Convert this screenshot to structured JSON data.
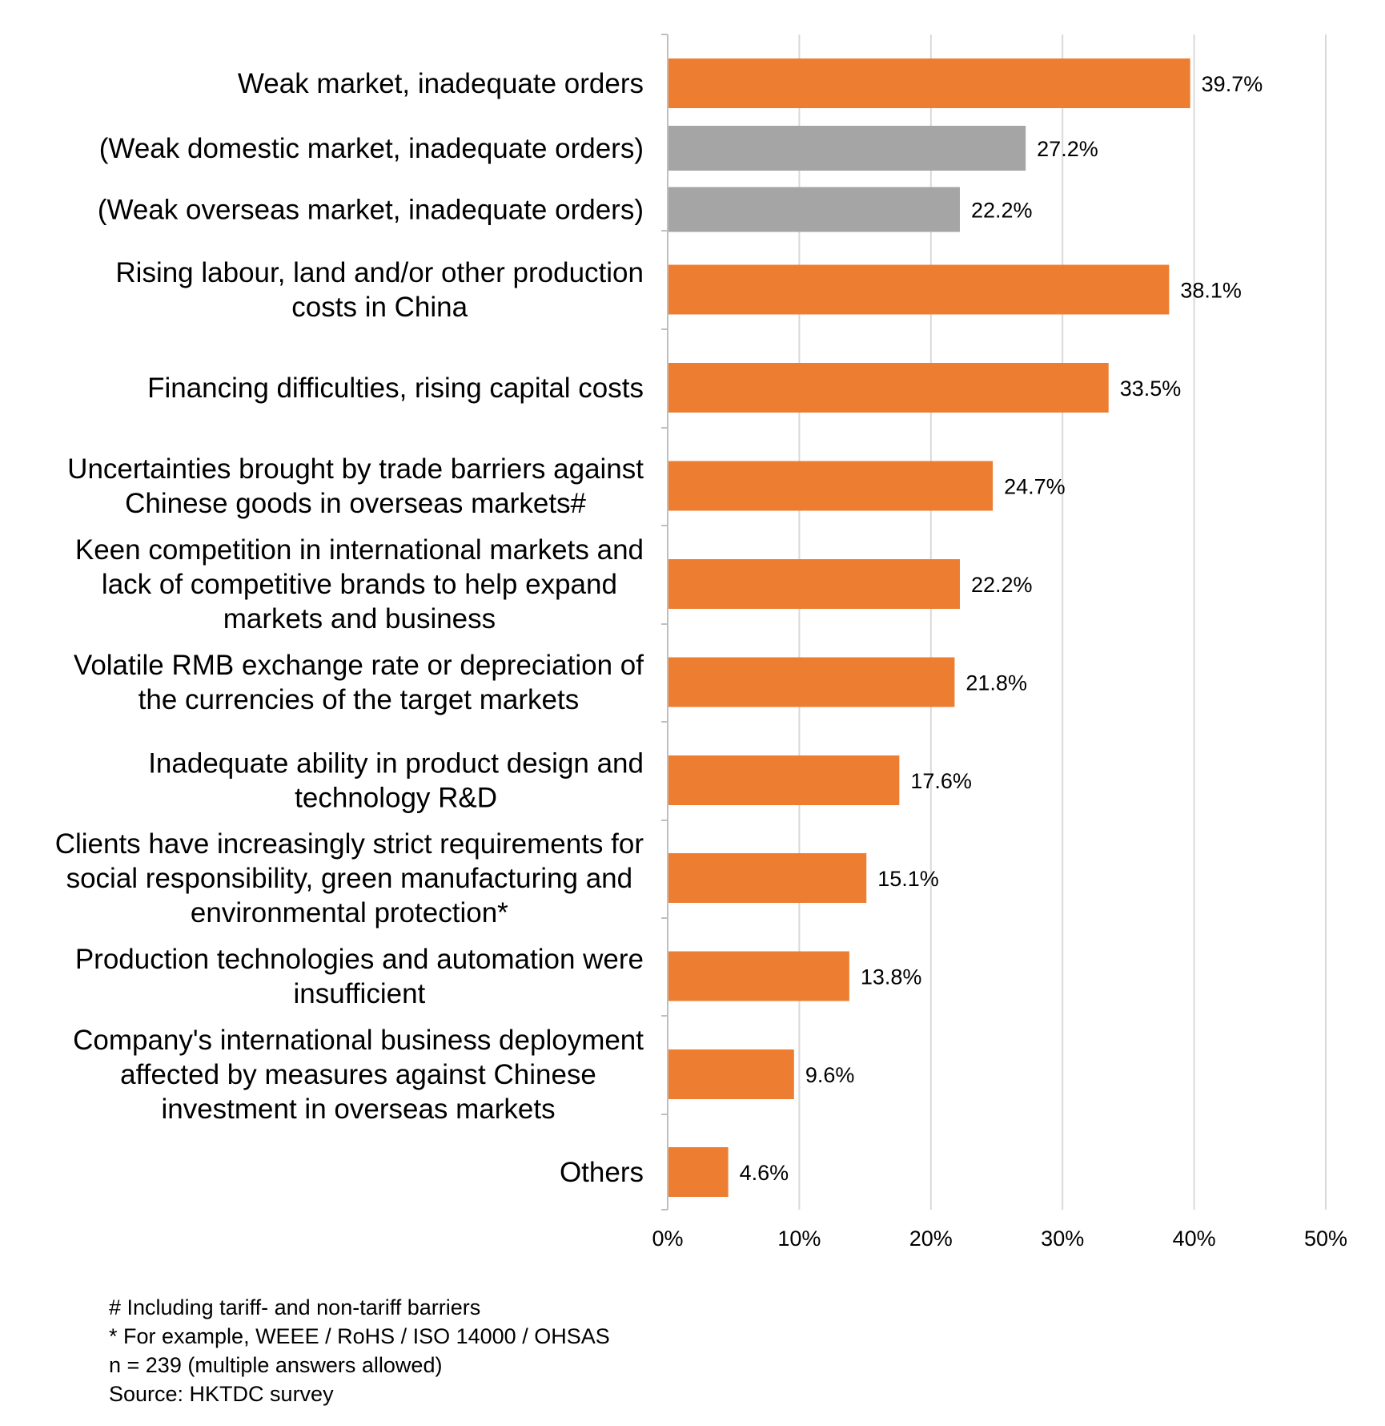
{
  "chart_data": {
    "type": "bar",
    "orientation": "horizontal",
    "title": "",
    "xlabel": "",
    "ylabel": "",
    "xlim": [
      0,
      50
    ],
    "grid": true,
    "value_suffix": "%",
    "ticks": [
      "0%",
      "10%",
      "20%",
      "30%",
      "40%",
      "50%"
    ],
    "tick_values": [
      0,
      10,
      20,
      30,
      40,
      50
    ],
    "colors": {
      "primary": "#ED7D31",
      "secondary": "#A5A5A5",
      "grid": "#D9D9D9",
      "axis": "#BFBFBF"
    },
    "categories": [
      {
        "label": [
          "Weak market, inadequate orders"
        ],
        "value": 39.7,
        "display": "39.7%",
        "kind": "primary"
      },
      {
        "label": [
          "(Weak domestic market, inadequate orders)"
        ],
        "value": 27.2,
        "display": "27.2%",
        "kind": "secondary"
      },
      {
        "label": [
          "(Weak overseas market, inadequate orders)"
        ],
        "value": 22.2,
        "display": "22.2%",
        "kind": "secondary"
      },
      {
        "label": [
          "Rising labour, land and/or other production",
          "costs in China"
        ],
        "value": 38.1,
        "display": "38.1%",
        "kind": "primary"
      },
      {
        "label": [
          "Financing difficulties, rising capital costs"
        ],
        "value": 33.5,
        "display": "33.5%",
        "kind": "primary"
      },
      {
        "label": [
          "Uncertainties brought by trade barriers against",
          "Chinese goods in overseas markets#"
        ],
        "value": 24.7,
        "display": "24.7%",
        "kind": "primary"
      },
      {
        "label": [
          "Keen competition in international markets and",
          "lack of competitive brands to help expand",
          "markets and business"
        ],
        "value": 22.2,
        "display": "22.2%",
        "kind": "primary"
      },
      {
        "label": [
          "Volatile RMB exchange rate or depreciation of",
          "the currencies of the target markets"
        ],
        "value": 21.8,
        "display": "21.8%",
        "kind": "primary"
      },
      {
        "label": [
          "Inadequate ability in product design and",
          "technology R&D"
        ],
        "value": 17.6,
        "display": "17.6%",
        "kind": "primary"
      },
      {
        "label": [
          "Clients have increasingly strict requirements for",
          "social responsibility, green manufacturing and",
          "environmental protection*"
        ],
        "value": 15.1,
        "display": "15.1%",
        "kind": "primary"
      },
      {
        "label": [
          "Production technologies and automation were",
          "insufficient"
        ],
        "value": 13.8,
        "display": "13.8%",
        "kind": "primary"
      },
      {
        "label": [
          "Company's international business deployment",
          "affected by measures against Chinese",
          "investment in overseas markets"
        ],
        "value": 9.6,
        "display": "9.6%",
        "kind": "primary"
      },
      {
        "label": [
          "Others"
        ],
        "value": 4.6,
        "display": "4.6%",
        "kind": "primary"
      }
    ]
  },
  "notes": {
    "note1": "# Including tariff- and non-tariff barriers",
    "note2": "* For example, WEEE / RoHS / ISO 14000 / OHSAS",
    "note3": "n = 239 (multiple answers allowed)",
    "source": "Source: HKTDC survey"
  }
}
